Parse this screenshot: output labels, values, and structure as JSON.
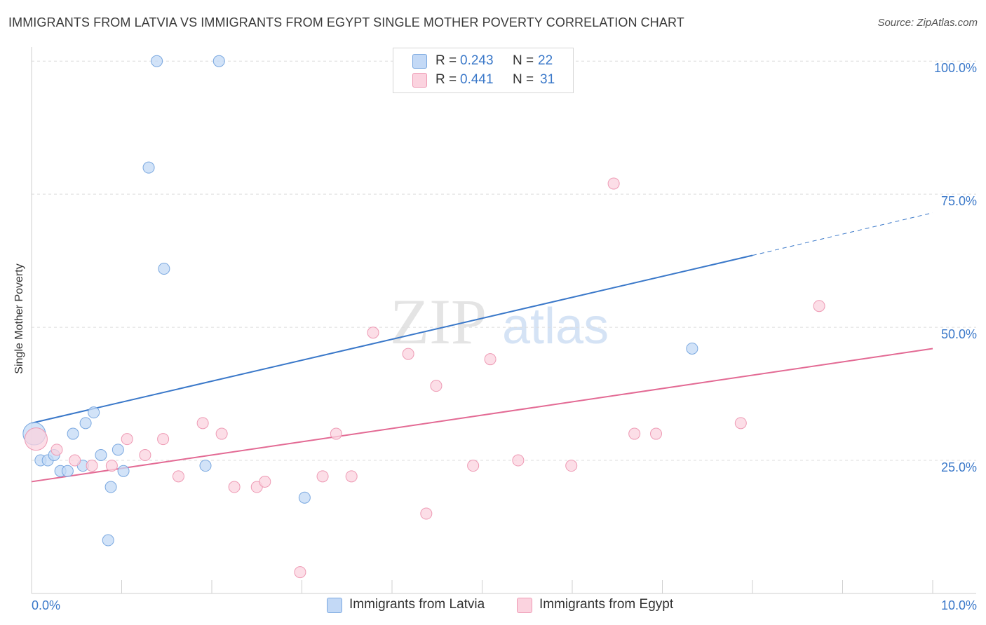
{
  "title": "IMMIGRANTS FROM LATVIA VS IMMIGRANTS FROM EGYPT SINGLE MOTHER POVERTY CORRELATION CHART",
  "source": "Source: ZipAtlas.com",
  "watermark": {
    "zip": "ZIP",
    "atlas": "atlas"
  },
  "legend": {
    "rows": [
      {
        "r_label": "R =",
        "r_value": "0.243",
        "n_label": "N =",
        "n_value": "22",
        "color": "#aecbf2",
        "border": "#7aa8e0"
      },
      {
        "r_label": "R =",
        "r_value": "0.441",
        "n_label": "N =",
        "n_value": "31",
        "color": "#f8c4d4",
        "border": "#ee9ab4"
      }
    ]
  },
  "bottom_legend": [
    {
      "label": "Immigrants from Latvia",
      "color": "#c3d9f6",
      "border": "#7aa8e0"
    },
    {
      "label": "Immigrants from Egypt",
      "color": "#fbd3df",
      "border": "#ee9ab4"
    }
  ],
  "chart_data": {
    "type": "scatter",
    "title": "IMMIGRANTS FROM LATVIA VS IMMIGRANTS FROM EGYPT SINGLE MOTHER POVERTY CORRELATION CHART",
    "xlabel": "",
    "ylabel": "Single Mother Poverty",
    "xlim": [
      0,
      10
    ],
    "ylim": [
      0,
      102
    ],
    "x_tick_labels": [
      {
        "value": 0,
        "label": "0.0%"
      },
      {
        "value": 10,
        "label": "10.0%"
      }
    ],
    "y_tick_labels": [
      {
        "value": 25,
        "label": "25.0%"
      },
      {
        "value": 50,
        "label": "50.0%"
      },
      {
        "value": 75,
        "label": "75.0%"
      },
      {
        "value": 100,
        "label": "100.0%"
      }
    ],
    "y_gridlines": [
      25,
      50,
      75,
      100
    ],
    "x_minor_ticks": [
      1,
      2,
      3,
      4,
      5,
      6,
      7,
      8,
      9,
      10
    ],
    "grid": true,
    "legend_position": "top-center",
    "series": [
      {
        "name": "Immigrants from Latvia",
        "color": "#3a78c9",
        "fill": "#c3d9f6",
        "stroke": "#7aa8e0",
        "points": [
          {
            "x": 0.03,
            "y": 30,
            "big": true
          },
          {
            "x": 0.1,
            "y": 25
          },
          {
            "x": 0.18,
            "y": 25
          },
          {
            "x": 0.25,
            "y": 26
          },
          {
            "x": 0.32,
            "y": 23
          },
          {
            "x": 0.4,
            "y": 23
          },
          {
            "x": 0.46,
            "y": 30
          },
          {
            "x": 0.57,
            "y": 24
          },
          {
            "x": 0.6,
            "y": 32
          },
          {
            "x": 0.69,
            "y": 34
          },
          {
            "x": 0.77,
            "y": 26
          },
          {
            "x": 0.85,
            "y": 10
          },
          {
            "x": 0.88,
            "y": 20
          },
          {
            "x": 0.96,
            "y": 27
          },
          {
            "x": 1.02,
            "y": 23
          },
          {
            "x": 1.3,
            "y": 80
          },
          {
            "x": 1.39,
            "y": 100
          },
          {
            "x": 1.47,
            "y": 61
          },
          {
            "x": 1.93,
            "y": 24
          },
          {
            "x": 2.08,
            "y": 100
          },
          {
            "x": 3.03,
            "y": 18
          },
          {
            "x": 7.33,
            "y": 46
          }
        ],
        "trend": {
          "x0": 0,
          "y0": 32,
          "x1": 8.0,
          "y1": 63.5,
          "dash_to_x": 10,
          "dash_to_y": 71.5
        }
      },
      {
        "name": "Immigrants from Egypt",
        "color": "#e36a94",
        "fill": "#fbd3df",
        "stroke": "#ee9ab4",
        "points": [
          {
            "x": 0.05,
            "y": 29,
            "big": true
          },
          {
            "x": 0.28,
            "y": 27
          },
          {
            "x": 0.48,
            "y": 25
          },
          {
            "x": 0.67,
            "y": 24
          },
          {
            "x": 0.89,
            "y": 24
          },
          {
            "x": 1.06,
            "y": 29
          },
          {
            "x": 1.26,
            "y": 26
          },
          {
            "x": 1.46,
            "y": 29
          },
          {
            "x": 1.63,
            "y": 22
          },
          {
            "x": 1.9,
            "y": 32
          },
          {
            "x": 2.11,
            "y": 30
          },
          {
            "x": 2.25,
            "y": 20
          },
          {
            "x": 2.5,
            "y": 20
          },
          {
            "x": 2.59,
            "y": 21
          },
          {
            "x": 2.98,
            "y": 4
          },
          {
            "x": 3.23,
            "y": 22
          },
          {
            "x": 3.38,
            "y": 30
          },
          {
            "x": 3.55,
            "y": 22
          },
          {
            "x": 3.79,
            "y": 49
          },
          {
            "x": 4.18,
            "y": 45
          },
          {
            "x": 4.38,
            "y": 15
          },
          {
            "x": 4.49,
            "y": 39
          },
          {
            "x": 4.9,
            "y": 24
          },
          {
            "x": 5.09,
            "y": 44
          },
          {
            "x": 5.4,
            "y": 25
          },
          {
            "x": 5.99,
            "y": 24
          },
          {
            "x": 6.46,
            "y": 77
          },
          {
            "x": 6.69,
            "y": 30
          },
          {
            "x": 6.93,
            "y": 30
          },
          {
            "x": 7.87,
            "y": 32
          },
          {
            "x": 8.74,
            "y": 54
          }
        ],
        "trend": {
          "x0": 0,
          "y0": 21,
          "x1": 10,
          "y1": 46
        }
      }
    ]
  }
}
